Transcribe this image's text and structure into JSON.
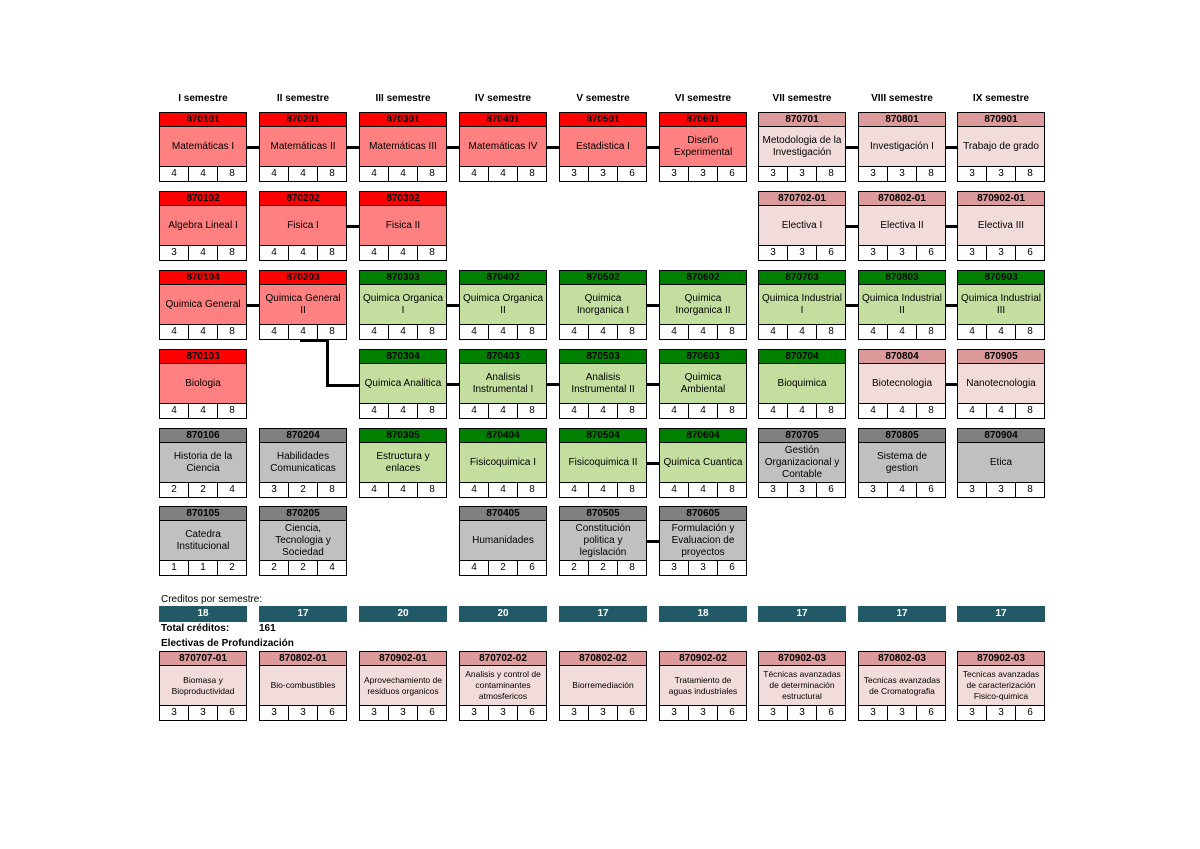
{
  "semesters": [
    "I semestre",
    "II semestre",
    "III semestre",
    "IV semestre",
    "V semestre",
    "VI semestre",
    "VII semestre",
    "VIII semestre",
    "IX semestre"
  ],
  "courses": [
    {
      "col": 0,
      "row": 0,
      "code": "870101",
      "name": "Matemáticas I",
      "credits": [
        "4",
        "4",
        "8"
      ],
      "theme": "red"
    },
    {
      "col": 1,
      "row": 0,
      "code": "870201",
      "name": "Matemáticas II",
      "credits": [
        "4",
        "4",
        "8"
      ],
      "theme": "red"
    },
    {
      "col": 2,
      "row": 0,
      "code": "870301",
      "name": "Matemáticas III",
      "credits": [
        "4",
        "4",
        "8"
      ],
      "theme": "red"
    },
    {
      "col": 3,
      "row": 0,
      "code": "870401",
      "name": "Matemáticas IV",
      "credits": [
        "4",
        "4",
        "8"
      ],
      "theme": "red"
    },
    {
      "col": 4,
      "row": 0,
      "code": "870501",
      "name": "Estadistica I",
      "credits": [
        "3",
        "3",
        "6"
      ],
      "theme": "red"
    },
    {
      "col": 5,
      "row": 0,
      "code": "870601",
      "name": "Diseño Experimental",
      "credits": [
        "3",
        "3",
        "6"
      ],
      "theme": "red"
    },
    {
      "col": 6,
      "row": 0,
      "code": "870701",
      "name": "Metodologia de la Investigación",
      "credits": [
        "3",
        "3",
        "8"
      ],
      "theme": "pink"
    },
    {
      "col": 7,
      "row": 0,
      "code": "870801",
      "name": "Investigación I",
      "credits": [
        "3",
        "3",
        "8"
      ],
      "theme": "pink"
    },
    {
      "col": 8,
      "row": 0,
      "code": "870901",
      "name": "Trabajo de grado",
      "credits": [
        "3",
        "3",
        "8"
      ],
      "theme": "pink"
    },
    {
      "col": 0,
      "row": 1,
      "code": "870102",
      "name": "Algebra Lineal I",
      "credits": [
        "3",
        "4",
        "8"
      ],
      "theme": "red"
    },
    {
      "col": 1,
      "row": 1,
      "code": "870202",
      "name": "Fisica I",
      "credits": [
        "4",
        "4",
        "8"
      ],
      "theme": "red"
    },
    {
      "col": 2,
      "row": 1,
      "code": "870302",
      "name": "Fisica II",
      "credits": [
        "4",
        "4",
        "8"
      ],
      "theme": "red"
    },
    {
      "col": 6,
      "row": 1,
      "code": "870702-01",
      "name": "Electiva I",
      "credits": [
        "3",
        "3",
        "6"
      ],
      "theme": "pink"
    },
    {
      "col": 7,
      "row": 1,
      "code": "870802-01",
      "name": "Electiva II",
      "credits": [
        "3",
        "3",
        "6"
      ],
      "theme": "pink"
    },
    {
      "col": 8,
      "row": 1,
      "code": "870902-01",
      "name": "Electiva III",
      "credits": [
        "3",
        "3",
        "6"
      ],
      "theme": "pink"
    },
    {
      "col": 0,
      "row": 2,
      "code": "870104",
      "name": "Quimica General",
      "credits": [
        "4",
        "4",
        "8"
      ],
      "theme": "red"
    },
    {
      "col": 1,
      "row": 2,
      "code": "870203",
      "name": "Quimica General II",
      "credits": [
        "4",
        "4",
        "8"
      ],
      "theme": "red"
    },
    {
      "col": 2,
      "row": 2,
      "code": "870303",
      "name": "Quimica Organica I",
      "credits": [
        "4",
        "4",
        "8"
      ],
      "theme": "green"
    },
    {
      "col": 3,
      "row": 2,
      "code": "870402",
      "name": "Quimica Organica II",
      "credits": [
        "4",
        "4",
        "8"
      ],
      "theme": "green"
    },
    {
      "col": 4,
      "row": 2,
      "code": "870502",
      "name": "Quimica Inorganica I",
      "credits": [
        "4",
        "4",
        "8"
      ],
      "theme": "green"
    },
    {
      "col": 5,
      "row": 2,
      "code": "870602",
      "name": "Quimica Inorganica II",
      "credits": [
        "4",
        "4",
        "8"
      ],
      "theme": "green"
    },
    {
      "col": 6,
      "row": 2,
      "code": "870703",
      "name": "Quimica Industrial I",
      "credits": [
        "4",
        "4",
        "8"
      ],
      "theme": "green"
    },
    {
      "col": 7,
      "row": 2,
      "code": "870803",
      "name": "Quimica Industrial II",
      "credits": [
        "4",
        "4",
        "8"
      ],
      "theme": "green"
    },
    {
      "col": 8,
      "row": 2,
      "code": "870903",
      "name": "Quimica Industrial III",
      "credits": [
        "4",
        "4",
        "8"
      ],
      "theme": "green"
    },
    {
      "col": 0,
      "row": 3,
      "code": "870103",
      "name": "Biologia",
      "credits": [
        "4",
        "4",
        "8"
      ],
      "theme": "red"
    },
    {
      "col": 2,
      "row": 3,
      "code": "870304",
      "name": "Quimica Analitica",
      "credits": [
        "4",
        "4",
        "8"
      ],
      "theme": "green"
    },
    {
      "col": 3,
      "row": 3,
      "code": "870403",
      "name": "Analisis Instrumental I",
      "credits": [
        "4",
        "4",
        "8"
      ],
      "theme": "green"
    },
    {
      "col": 4,
      "row": 3,
      "code": "870503",
      "name": "Analisis Instrumental II",
      "credits": [
        "4",
        "4",
        "8"
      ],
      "theme": "green"
    },
    {
      "col": 5,
      "row": 3,
      "code": "870603",
      "name": "Quimica Ambiental",
      "credits": [
        "4",
        "4",
        "8"
      ],
      "theme": "green"
    },
    {
      "col": 6,
      "row": 3,
      "code": "870704",
      "name": "Bioquimica",
      "credits": [
        "4",
        "4",
        "8"
      ],
      "theme": "green"
    },
    {
      "col": 7,
      "row": 3,
      "code": "870804",
      "name": "Biotecnologia",
      "credits": [
        "4",
        "4",
        "8"
      ],
      "theme": "pink"
    },
    {
      "col": 8,
      "row": 3,
      "code": "870905",
      "name": "Nanotecnologia",
      "credits": [
        "4",
        "4",
        "8"
      ],
      "theme": "pink"
    },
    {
      "col": 0,
      "row": 4,
      "code": "870106",
      "name": "Historia de la Ciencia",
      "credits": [
        "2",
        "2",
        "4"
      ],
      "theme": "gray"
    },
    {
      "col": 1,
      "row": 4,
      "code": "870204",
      "name": "Habilidades Comunicaticas",
      "credits": [
        "3",
        "2",
        "8"
      ],
      "theme": "gray"
    },
    {
      "col": 2,
      "row": 4,
      "code": "870305",
      "name": "Estructura y enlaces",
      "credits": [
        "4",
        "4",
        "8"
      ],
      "theme": "green"
    },
    {
      "col": 3,
      "row": 4,
      "code": "870404",
      "name": "Fisicoquimica I",
      "credits": [
        "4",
        "4",
        "8"
      ],
      "theme": "green"
    },
    {
      "col": 4,
      "row": 4,
      "code": "870504",
      "name": "Fisicoquimica II",
      "credits": [
        "4",
        "4",
        "8"
      ],
      "theme": "green"
    },
    {
      "col": 5,
      "row": 4,
      "code": "870604",
      "name": "Quimica Cuantica",
      "credits": [
        "4",
        "4",
        "8"
      ],
      "theme": "green"
    },
    {
      "col": 6,
      "row": 4,
      "code": "870705",
      "name": "Gestión Organizacional y Contable",
      "credits": [
        "3",
        "3",
        "6"
      ],
      "theme": "gray"
    },
    {
      "col": 7,
      "row": 4,
      "code": "870805",
      "name": "Sistema de gestion",
      "credits": [
        "3",
        "4",
        "6"
      ],
      "theme": "gray"
    },
    {
      "col": 8,
      "row": 4,
      "code": "870904",
      "name": "Etica",
      "credits": [
        "3",
        "3",
        "8"
      ],
      "theme": "gray"
    },
    {
      "col": 0,
      "row": 5,
      "code": "870105",
      "name": "Catedra Institucional",
      "credits": [
        "1",
        "1",
        "2"
      ],
      "theme": "gray"
    },
    {
      "col": 1,
      "row": 5,
      "code": "870205",
      "name": "Ciencia, Tecnologia y Sociedad",
      "credits": [
        "2",
        "2",
        "4"
      ],
      "theme": "gray"
    },
    {
      "col": 3,
      "row": 5,
      "code": "870405",
      "name": "Humanidades",
      "credits": [
        "4",
        "2",
        "6"
      ],
      "theme": "gray"
    },
    {
      "col": 4,
      "row": 5,
      "code": "870505",
      "name": "Constitución politica y legislación",
      "credits": [
        "2",
        "2",
        "8"
      ],
      "theme": "gray"
    },
    {
      "col": 5,
      "row": 5,
      "code": "870605",
      "name": "Formulación y Evaluacion de proyectos",
      "credits": [
        "3",
        "3",
        "6"
      ],
      "theme": "gray"
    }
  ],
  "credits_label": "Creditos por semestre:",
  "semester_credits": [
    "18",
    "17",
    "20",
    "20",
    "17",
    "18",
    "17",
    "17",
    "17"
  ],
  "total_label": "Total créditos:",
  "total_value": "161",
  "electives_label": "Electivas de Profundización",
  "electives": [
    {
      "code": "870707-01",
      "name": "Biomasa y Bioproductividad",
      "credits": [
        "3",
        "3",
        "6"
      ]
    },
    {
      "code": "870802-01",
      "name": "Bio-combustibles",
      "credits": [
        "3",
        "3",
        "6"
      ]
    },
    {
      "code": "870902-01",
      "name": "Aprovechamiento de residuos organicos",
      "credits": [
        "3",
        "3",
        "6"
      ]
    },
    {
      "code": "870702-02",
      "name": "Analisis y control de contaminantes atmosfericos",
      "credits": [
        "3",
        "3",
        "6"
      ]
    },
    {
      "code": "870802-02",
      "name": "Biorremediación",
      "credits": [
        "3",
        "3",
        "6"
      ]
    },
    {
      "code": "870902-02",
      "name": "Tratamiento de aguas industriales",
      "credits": [
        "3",
        "3",
        "6"
      ]
    },
    {
      "code": "870902-03",
      "name": "Técnicas avanzadas de determinación estructural",
      "credits": [
        "3",
        "3",
        "6"
      ]
    },
    {
      "code": "870802-03",
      "name": "Tecnicas avanzadas de Cromatografia",
      "credits": [
        "3",
        "3",
        "6"
      ]
    },
    {
      "code": "870902-03",
      "name": "Tecnicas avanzadas de caracterización Fisico-quimica",
      "credits": [
        "3",
        "3",
        "6"
      ]
    }
  ]
}
